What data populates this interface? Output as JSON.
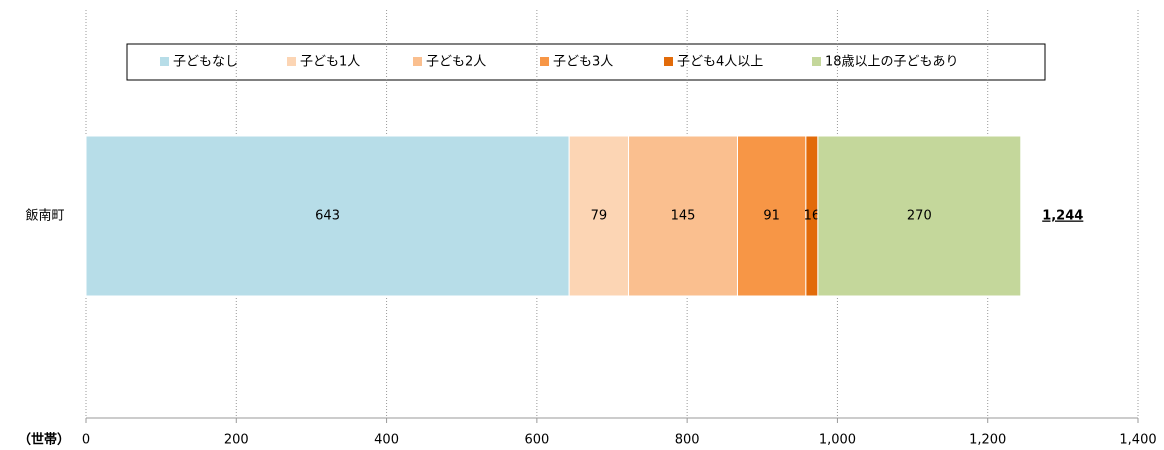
{
  "chart_data": {
    "type": "stacked-bar-horizontal",
    "categories": [
      "飯南町"
    ],
    "series": [
      {
        "name": "子どもなし",
        "color": "#b7dde8",
        "values": [
          643
        ]
      },
      {
        "name": "子ども1人",
        "color": "#fcd5b4",
        "values": [
          79
        ]
      },
      {
        "name": "子ども2人",
        "color": "#fabf8f",
        "values": [
          145
        ]
      },
      {
        "name": "子ども3人",
        "color": "#f79646",
        "values": [
          91
        ]
      },
      {
        "name": "子ども4人以上",
        "color": "#e26b0a",
        "values": [
          16
        ]
      },
      {
        "name": "18歳以上の子どもあり",
        "color": "#c4d79b",
        "values": [
          270
        ]
      }
    ],
    "totals": [
      1244
    ],
    "total_labels": [
      "1,244"
    ],
    "xlabel": "（世帯）",
    "xlim": [
      0,
      1400
    ],
    "xticks": [
      0,
      200,
      400,
      600,
      800,
      {
        "value": 1000,
        "label": "1,000"
      },
      {
        "value": 1200,
        "label": "1,200"
      },
      {
        "value": 1400,
        "label": "1,400"
      }
    ],
    "grid": true,
    "legend": "top"
  }
}
